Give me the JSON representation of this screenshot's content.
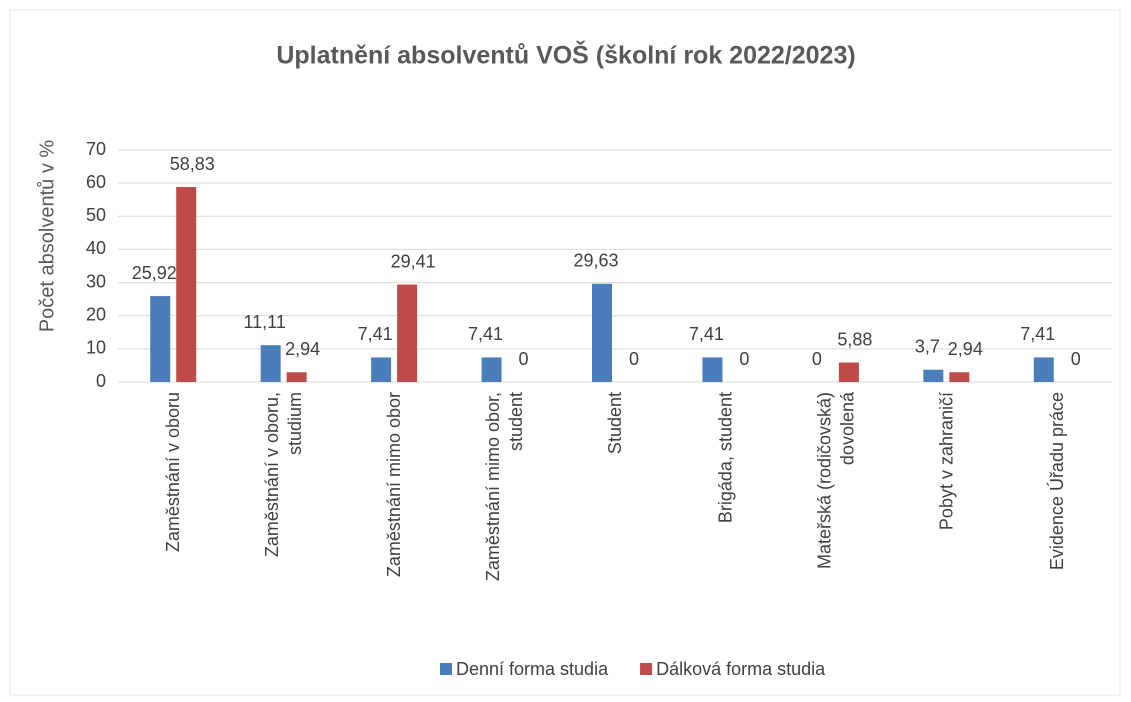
{
  "chart_data": {
    "type": "bar",
    "title": "Uplatnění absolventů VOŠ (školní rok 2022/2023)",
    "y_label": "Počet absolventů v %",
    "categories": [
      "Zaměstnání v oboru",
      "Zaměstnání v oboru, studium",
      "Zaměstnání mimo obor",
      "Zaměstnání mimo obor, student",
      "Student",
      "Brigáda, student",
      "Mateřská (rodičovská) dovolená",
      "Pobyt v zahraničí",
      "Evidence Úřadu práce"
    ],
    "series": [
      {
        "name": "Denní forma studia",
        "color": "#4a7ebb",
        "values": [
          25.92,
          11.11,
          7.41,
          7.41,
          29.63,
          7.41,
          0,
          3.7,
          7.41
        ],
        "value_labels": [
          "25,92",
          "11,11",
          "7,41",
          "7,41",
          "29,63",
          "7,41",
          "0",
          "3,7",
          "7,41"
        ]
      },
      {
        "name": "Dálková forma studia",
        "color": "#be4b48",
        "values": [
          58.83,
          2.94,
          29.41,
          0,
          0,
          0,
          5.88,
          2.94,
          0
        ],
        "value_labels": [
          "58,83",
          "2,94",
          "29,41",
          "0",
          "0",
          "0",
          "5,88",
          "2,94",
          "0"
        ]
      }
    ],
    "ylim": [
      0,
      70
    ],
    "yticks": [
      0,
      10,
      20,
      30,
      40,
      50,
      60,
      70
    ],
    "grid": true,
    "legend": "bottom"
  }
}
